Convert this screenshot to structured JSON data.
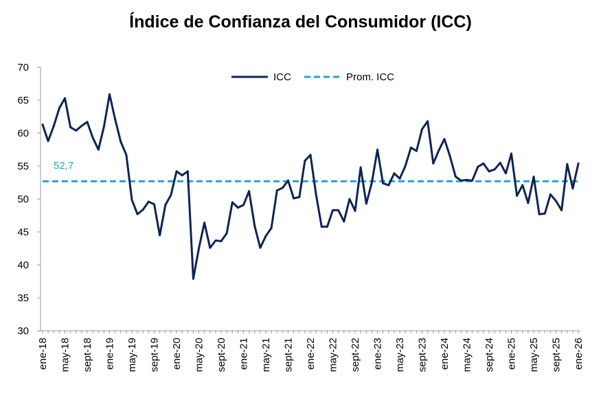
{
  "chart_data": {
    "type": "line",
    "title": "Índice de Confianza del Consumidor (ICC)",
    "xlabel": "",
    "ylabel": "",
    "ylim": [
      30,
      70
    ],
    "yticks": [
      30,
      35,
      40,
      45,
      50,
      55,
      60,
      65,
      70
    ],
    "grid": false,
    "legend_position": "top-center",
    "x_tick_labels": [
      "ene-18",
      "may-18",
      "sept-18",
      "ene-19",
      "may-19",
      "sept-19",
      "ene-20",
      "may-20",
      "sept-20",
      "ene-21",
      "may-21",
      "sept-21",
      "ene-22",
      "may-22",
      "sept-22",
      "ene-23",
      "may-23",
      "sept-23",
      "ene-24",
      "may-24",
      "sept-24",
      "ene-25",
      "may-25",
      "sept-25",
      "ene-26"
    ],
    "series": [
      {
        "name": "ICC",
        "color": "#0d2454",
        "style": "solid",
        "x_start": "ene-18",
        "frequency": "monthly",
        "values": [
          61.3,
          58.8,
          61.1,
          63.8,
          65.3,
          60.9,
          60.4,
          61.1,
          61.7,
          59.3,
          57.5,
          61.0,
          65.9,
          62.1,
          58.7,
          56.7,
          49.9,
          47.7,
          48.4,
          49.6,
          49.2,
          44.5,
          49.1,
          50.6,
          54.2,
          53.6,
          54.2,
          37.9,
          42.5,
          46.4,
          42.6,
          43.7,
          43.6,
          44.8,
          49.5,
          48.7,
          49.1,
          51.2,
          45.9,
          42.6,
          44.4,
          45.6,
          51.3,
          51.7,
          52.8,
          50.1,
          50.3,
          55.8,
          56.7,
          50.7,
          45.8,
          45.8,
          48.3,
          48.3,
          46.6,
          50.0,
          48.2,
          54.8,
          49.3,
          52.5,
          57.5,
          52.4,
          52.1,
          53.9,
          53.1,
          55.0,
          57.8,
          57.3,
          60.6,
          61.8,
          55.4,
          57.4,
          59.1,
          56.5,
          53.4,
          52.8,
          52.9,
          52.8,
          54.9,
          55.4,
          54.2,
          54.5,
          55.5,
          53.9,
          56.9,
          50.5,
          52.1,
          49.4,
          53.4,
          47.7,
          47.8,
          50.7,
          49.7,
          48.3,
          55.3,
          51.6,
          55.4
        ]
      },
      {
        "name": "Prom. ICC",
        "color": "#1ea3d3",
        "style": "dashed",
        "constant_value": 52.7
      }
    ],
    "annotations": [
      {
        "text": "52,7",
        "color": "#1ea3d3"
      }
    ]
  }
}
